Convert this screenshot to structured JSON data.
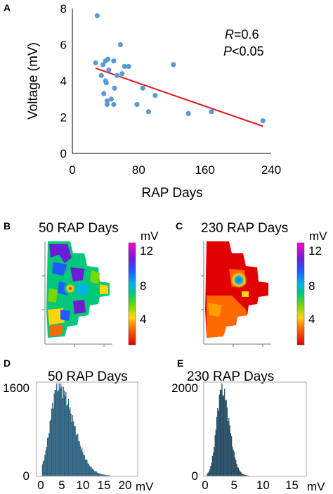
{
  "chart_data": [
    {
      "panel": "A",
      "type": "scatter",
      "xlabel": "RAP Days",
      "ylabel": "Voltage (mV)",
      "xlim": [
        0,
        240
      ],
      "ylim": [
        0,
        8
      ],
      "xticks": [
        "0",
        "80",
        "160",
        "240"
      ],
      "yticks": [
        "0",
        "2",
        "4",
        "6",
        "8"
      ],
      "points": [
        {
          "x": 28,
          "y": 5.0
        },
        {
          "x": 30,
          "y": 7.6
        },
        {
          "x": 35,
          "y": 4.3
        },
        {
          "x": 37,
          "y": 4.9
        },
        {
          "x": 38,
          "y": 3.3
        },
        {
          "x": 40,
          "y": 4.0
        },
        {
          "x": 40,
          "y": 5.1
        },
        {
          "x": 41,
          "y": 3.9
        },
        {
          "x": 42,
          "y": 2.9
        },
        {
          "x": 42,
          "y": 2.7
        },
        {
          "x": 43,
          "y": 5.2
        },
        {
          "x": 44,
          "y": 4.6
        },
        {
          "x": 47,
          "y": 3.0
        },
        {
          "x": 50,
          "y": 5.1
        },
        {
          "x": 50,
          "y": 2.7
        },
        {
          "x": 51,
          "y": 3.6
        },
        {
          "x": 54,
          "y": 4.3
        },
        {
          "x": 58,
          "y": 6.0
        },
        {
          "x": 60,
          "y": 4.4
        },
        {
          "x": 63,
          "y": 4.8
        },
        {
          "x": 68,
          "y": 4.8
        },
        {
          "x": 78,
          "y": 2.7
        },
        {
          "x": 85,
          "y": 3.6
        },
        {
          "x": 92,
          "y": 2.3
        },
        {
          "x": 100,
          "y": 3.2
        },
        {
          "x": 122,
          "y": 4.9
        },
        {
          "x": 140,
          "y": 2.2
        },
        {
          "x": 168,
          "y": 2.3
        },
        {
          "x": 230,
          "y": 1.8
        }
      ],
      "trendline": {
        "x": [
          28,
          230
        ],
        "y": [
          4.7,
          1.5
        ]
      },
      "annotation": {
        "r_label": "R",
        "r_value": "=0.6",
        "p_label": "P",
        "p_value": "<0.05"
      },
      "colors": {
        "points": "#5b9bd5",
        "trendline": "#e3191c"
      }
    },
    {
      "panel": "B",
      "type": "heatmap",
      "title": "50 RAP Days",
      "colorbar_label": "mV",
      "colorbar_ticks": [
        "12",
        "8",
        "4"
      ]
    },
    {
      "panel": "C",
      "type": "heatmap",
      "title": "230 RAP Days",
      "colorbar_label": "mV",
      "colorbar_ticks": [
        "12",
        "8",
        "4"
      ]
    },
    {
      "panel": "D",
      "type": "bar",
      "title": "50 RAP Days",
      "xlabel": "mV",
      "xlim": [
        0,
        22
      ],
      "xticks": [
        "0",
        "5",
        "10",
        "15",
        "20"
      ],
      "yticks": [
        "1600",
        "0"
      ],
      "ylim": [
        0,
        1600
      ],
      "bin_width": 0.2,
      "distribution": {
        "peak": 4,
        "left_spread": 1.8,
        "right_spread": 3.6,
        "peak_count": 1570
      },
      "color": "#2e6b8e"
    },
    {
      "panel": "E",
      "type": "bar",
      "title": "230 RAP Days",
      "xlabel": "mV",
      "xlim": [
        0,
        17
      ],
      "xticks": [
        "0",
        "5",
        "10",
        "15"
      ],
      "yticks": [
        "2000",
        "0"
      ],
      "ylim": [
        0,
        2000
      ],
      "bin_width": 0.15,
      "distribution": {
        "peak": 2.8,
        "left_spread": 0.9,
        "right_spread": 1.3,
        "peak_count": 1900
      },
      "color": "#1f4a63"
    }
  ],
  "panel_letters": {
    "a": "A",
    "b": "B",
    "c": "C",
    "d": "D",
    "e": "E"
  }
}
